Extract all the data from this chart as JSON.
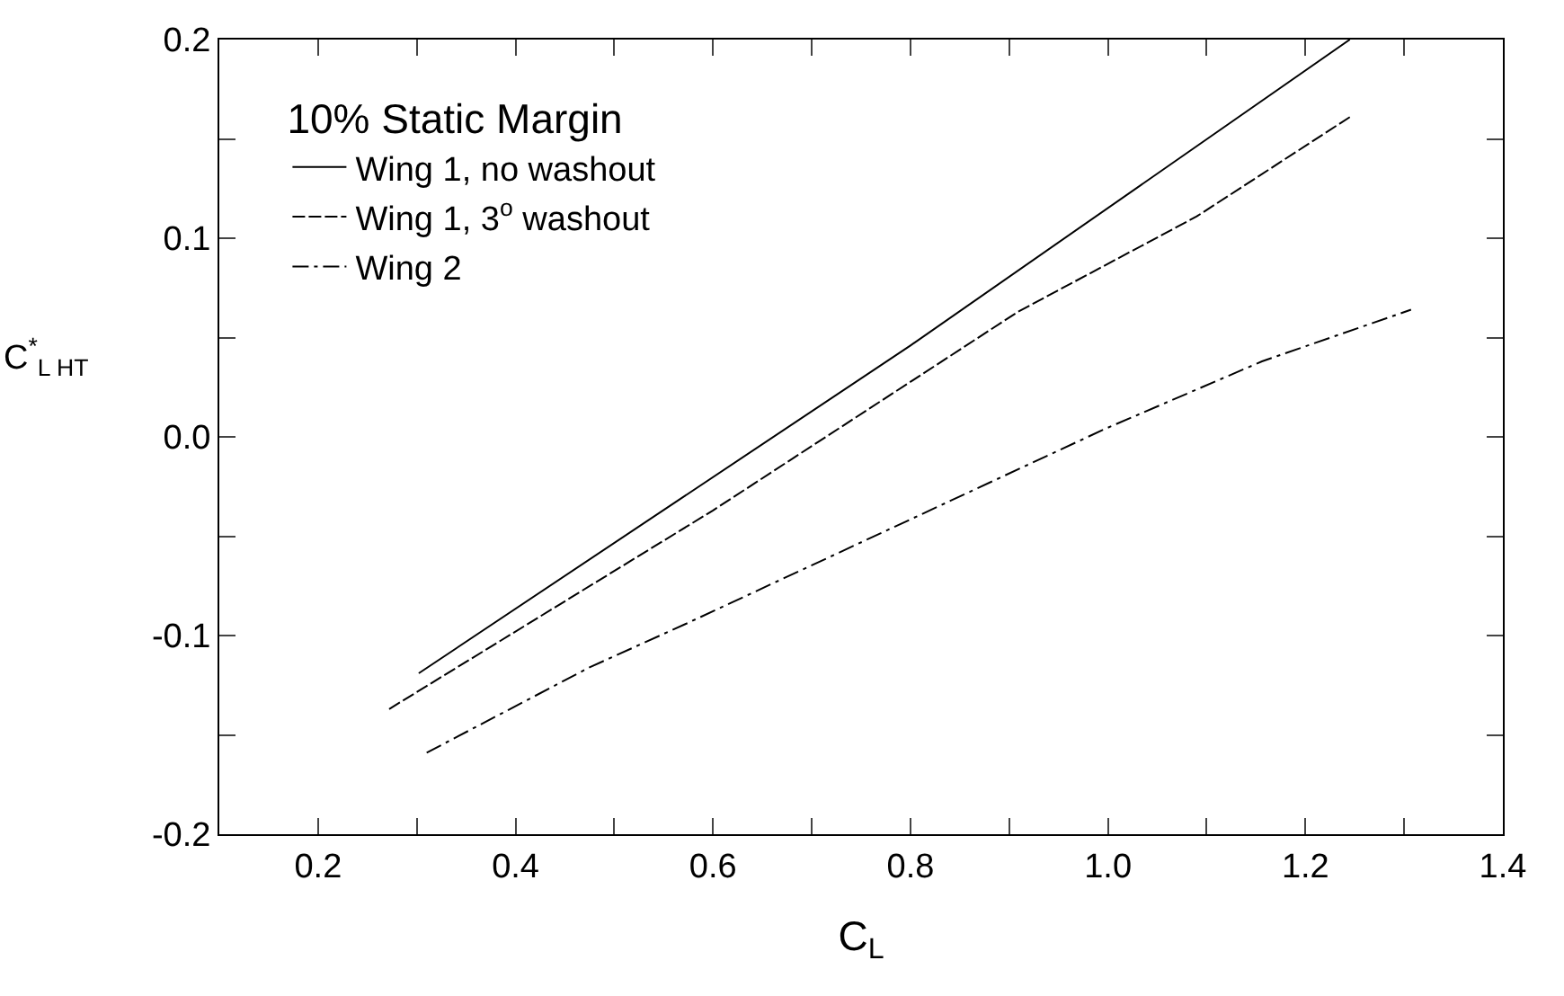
{
  "chart_data": {
    "type": "line",
    "xlabel": "C$_{L}$",
    "ylabel": "C$^{*}$$_{L HT}$",
    "legend_title": "10% Static Margin",
    "legend": "top left",
    "grid": false,
    "marker": "none",
    "xlim": [
      0.1,
      1.4
    ],
    "ylim": [
      -0.2,
      0.2
    ],
    "xticks": [
      0.2,
      {
        "value": 0.3,
        "label": null
      },
      0.4,
      {
        "value": 0.5,
        "label": null
      },
      0.6,
      {
        "value": 0.7,
        "label": null
      },
      0.8,
      {
        "value": 0.9,
        "label": null
      },
      {
        "value": 1.0,
        "label": "1.0"
      },
      {
        "value": 1.1,
        "label": null
      },
      1.2,
      {
        "value": 1.3,
        "label": null
      },
      1.4
    ],
    "yticks": [
      -0.2,
      {
        "value": -0.15,
        "label": null
      },
      -0.1,
      {
        "value": -0.05,
        "label": null
      },
      {
        "value": 0,
        "label": "0.0"
      },
      {
        "value": 0.05,
        "label": null
      },
      0.1,
      {
        "value": 0.15,
        "label": null
      },
      0.2
    ],
    "series": [
      {
        "name": "Wing 1, no washout",
        "color": "#000000",
        "line_style": "solid",
        "x": [
          0.302,
          0.8,
          1.245
        ],
        "values": [
          -0.119,
          0.046,
          0.2
        ]
      },
      {
        "name": "Wing 1, 3$^{o}$ washout",
        "color": "#000000",
        "line_style": "dashed",
        "x": [
          0.272,
          0.6,
          0.909,
          1.09,
          1.245
        ],
        "values": [
          -0.137,
          -0.037,
          0.063,
          0.111,
          0.161
        ]
      },
      {
        "name": "Wing 2",
        "color": "#000000",
        "line_style": "dashdot",
        "x": [
          0.31,
          0.475,
          0.573,
          0.997,
          1.156,
          1.307
        ],
        "values": [
          -0.159,
          -0.116,
          -0.094,
          0.004,
          0.038,
          0.064
        ]
      }
    ]
  }
}
